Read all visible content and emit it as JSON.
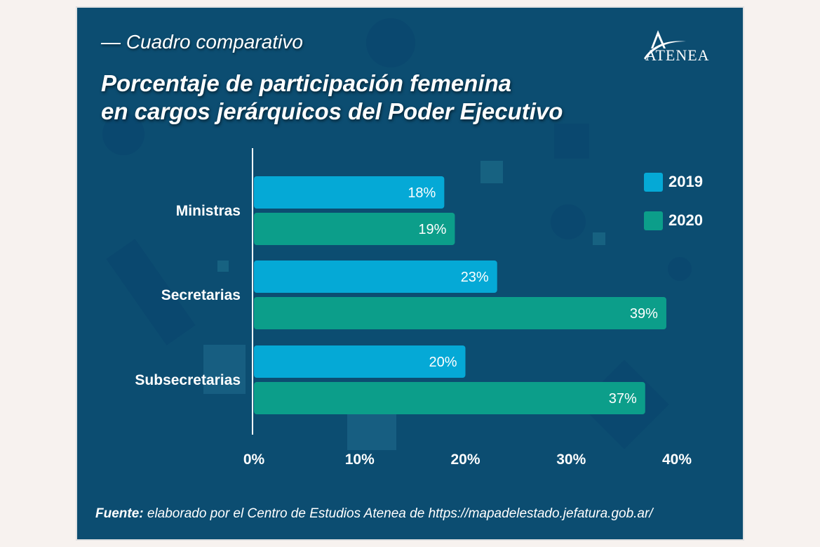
{
  "subtitle": "Cuadro comparativo",
  "title_line1": "Porcentaje de participación femenina",
  "title_line2": "en cargos jerárquicos del Poder Ejecutivo",
  "logo": {
    "text": "ATENEA",
    "icon": "atenea-logo-icon"
  },
  "source": {
    "label": "Fuente:",
    "text": " elaborado por el Centro de Estudios Atenea de https://mapadelestado.jefatura.gob.ar/"
  },
  "colors": {
    "2019": "#05a9d6",
    "2020": "#0c9e8a",
    "background": "#0c4d71"
  },
  "chart_data": {
    "type": "bar",
    "orientation": "horizontal",
    "title": "Porcentaje de participación femenina en cargos jerárquicos del Poder Ejecutivo",
    "categories": [
      "Ministras",
      "Secretarias",
      "Subsecretarias"
    ],
    "series": [
      {
        "name": "2019",
        "values": [
          18,
          23,
          20
        ],
        "labels": [
          "18%",
          "23%",
          "20%"
        ]
      },
      {
        "name": "2020",
        "values": [
          19,
          39,
          37
        ],
        "labels": [
          "19%",
          "39%",
          "37%"
        ]
      }
    ],
    "xticks": [
      "0%",
      "10%",
      "20%",
      "30%",
      "40%"
    ],
    "xlim": [
      0,
      40
    ],
    "xlabel": "",
    "ylabel": "",
    "grid": false,
    "legend": "right"
  }
}
